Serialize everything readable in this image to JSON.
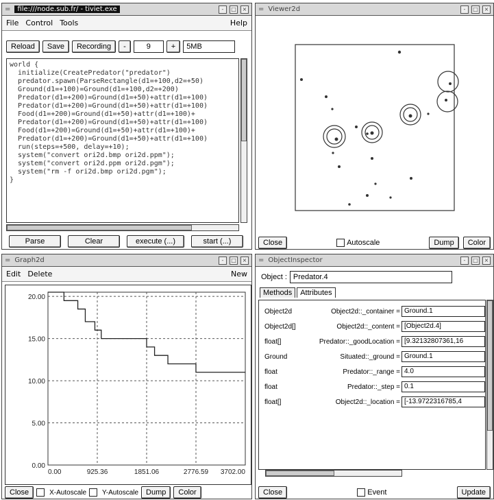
{
  "control": {
    "title": "file:///node.sub.fr/ - tiviet.exe",
    "menu": {
      "file": "File",
      "control": "Control",
      "tools": "Tools",
      "help": "Help"
    },
    "toolbar": {
      "reload": "Reload",
      "save": "Save",
      "recording": "Recording",
      "step_value": "9",
      "step_extra": "5MB"
    },
    "code_lines": [
      "world {",
      "",
      "  initialize(CreatePredator(\"predator\")",
      "  predator.spawn(ParseRectangle(d1=+100,d2=+50)",
      "  Ground(d1=+100)=Ground(d1=+100,d2=+200)",
      "  Predator(d1=+200)=Ground(d1=+50)+attr(d1=+100)",
      "  Predator(d1=+200)=Ground(d1=+50)+attr(d1=+100)",
      "  Food(d1=+200)=Ground(d1=+50)+attr(d1=+100)+",
      "  Predator(d1=+200)=Ground(d1=+50)+attr(d1=+100)",
      "  Food(d1=+200)=Ground(d1=+50)+attr(d1=+100)+",
      "  Predator(d1=+200)=Ground(d1=+50)+attr(d1=+100)",
      "  run(steps=+500, delay=+10);",
      "  system(\"convert ori2d.bmp ori2d.ppm\");",
      "  system(\"convert ori2d.ppm ori2d.pgm\");",
      "  system(\"rm -f ori2d.bmp ori2d.pgm\");",
      "}"
    ],
    "buttons": {
      "parse": "Parse",
      "clear": "Clear",
      "execute": "execute (...)",
      "start": "start (...)"
    }
  },
  "viewer": {
    "title": "Viewer2d",
    "buttons": {
      "close": "Close",
      "autoscale": "Autoscale",
      "dump": "Dump",
      "color": "Color"
    }
  },
  "graph": {
    "title": "Graph2d",
    "menu": {
      "edit": "Edit",
      "delete": "Delete",
      "new": "New"
    },
    "buttons": {
      "close": "Close",
      "x_autoscale": "X-Autoscale",
      "y_autoscale": "Y-Autoscale",
      "dump": "Dump",
      "color": "Color"
    }
  },
  "inspector": {
    "title": "ObjectInspector",
    "object_label": "Object :",
    "object_value": "Predator.4",
    "tabs": [
      "Methods",
      "Attributes"
    ],
    "attributes": [
      {
        "type": "Object2d",
        "name": "Object2d::_container =",
        "value": "Ground.1"
      },
      {
        "type": "Object2d[]",
        "name": "Object2d::_content =",
        "value": "[Object2d.4]"
      },
      {
        "type": "float[]",
        "name": "Predator::_goodLocation =",
        "value": "[9.32132807361,16"
      },
      {
        "type": "Ground",
        "name": "Situated::_ground =",
        "value": "Ground.1"
      },
      {
        "type": "float",
        "name": "Predator::_range =",
        "value": "4.0"
      },
      {
        "type": "float",
        "name": "Predator::_step =",
        "value": "0.1"
      },
      {
        "type": "float[]",
        "name": "Object2d::_location =",
        "value": "[-13.9722316785,4"
      }
    ],
    "buttons": {
      "close": "Close",
      "event": "Event",
      "update": "Update"
    }
  },
  "chart_data": {
    "type": "line",
    "x_ticks": [
      "0.00",
      "925.36",
      "1851.06",
      "2776.59",
      "3702.00"
    ],
    "y_ticks": [
      "0.00",
      "5.00",
      "10.00",
      "15.00",
      "20.00"
    ],
    "xlim": [
      0,
      3702
    ],
    "ylim": [
      0,
      20.5
    ],
    "series": [
      {
        "x": [
          0,
          300,
          300,
          560,
          560,
          700,
          700,
          880,
          880,
          1000,
          1000,
          1851,
          1851,
          2000,
          2000,
          2250,
          2250,
          2776,
          2776,
          3702
        ],
        "y": [
          20.5,
          20.5,
          19.5,
          19.5,
          18.5,
          18.5,
          17,
          17,
          16,
          16,
          15,
          15,
          14,
          14,
          13,
          13,
          12,
          12,
          11,
          11
        ]
      }
    ]
  }
}
